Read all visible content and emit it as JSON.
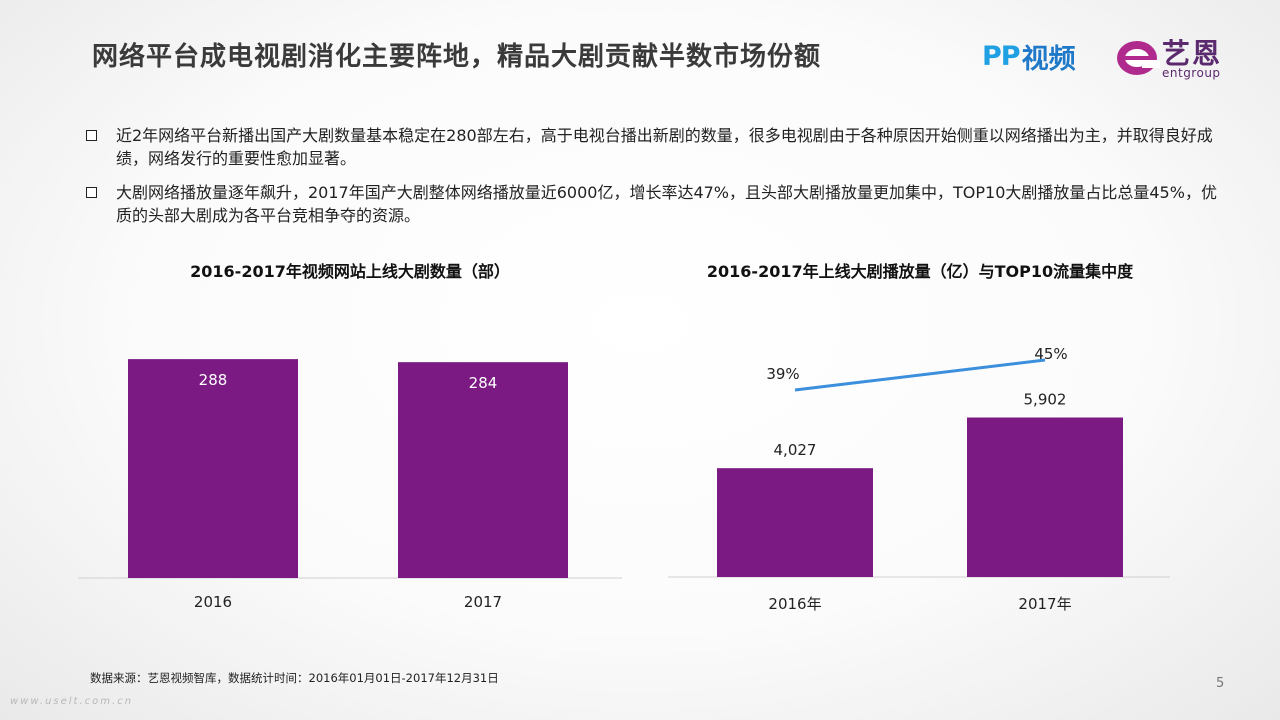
{
  "title": "网络平台成电视剧消化主要阵地，精品大剧贡献半数市场份额",
  "logos": {
    "pp_mark": "PP",
    "pp_text": "视频",
    "ent_cn": "艺恩",
    "ent_en": "entgroup"
  },
  "bullets": [
    "近2年网络平台新播出国产大剧数量基本稳定在280部左右，高于电视台播出新剧的数量，很多电视剧由于各种原因开始侧重以网络播出为主，并取得良好成绩，网络发行的重要性愈加显著。",
    "大剧网络播放量逐年飙升，2017年国产大剧整体网络播放量近6000亿，增长率达47%，且头部大剧播放量更加集中，TOP10大剧播放量占比总量45%，优质的头部大剧成为各平台竞相争夺的资源。"
  ],
  "chart_data": [
    {
      "type": "bar",
      "title": "2016-2017年视频网站上线大剧数量（部）",
      "categories": [
        "2016",
        "2017"
      ],
      "values": [
        288,
        284
      ],
      "data_labels": [
        "288",
        "284"
      ],
      "ylim": [
        0,
        300
      ],
      "grid": false,
      "color": "#7a1a82",
      "label_color": "#ffffff"
    },
    {
      "type": "bar",
      "title": "2016-2017年上线大剧播放量（亿）与TOP10流量集中度",
      "categories": [
        "2016年",
        "2017年"
      ],
      "series": [
        {
          "type": "bar",
          "values": [
            4027,
            5902
          ],
          "data_labels": [
            "4,027",
            "5,902"
          ],
          "color": "#7a1a82"
        },
        {
          "type": "line",
          "values": [
            39,
            45
          ],
          "data_labels": [
            "39%",
            "45%"
          ],
          "color": "#3b8fdc"
        }
      ],
      "ylim": [
        0,
        8400
      ],
      "ylim_line": [
        0,
        50
      ],
      "grid": false
    }
  ],
  "source": "数据来源：艺恩视频智库，数据统计时间：2016年01月01日-2017年12月31日",
  "page_number": "5",
  "watermark": "www.uselt.com.cn"
}
